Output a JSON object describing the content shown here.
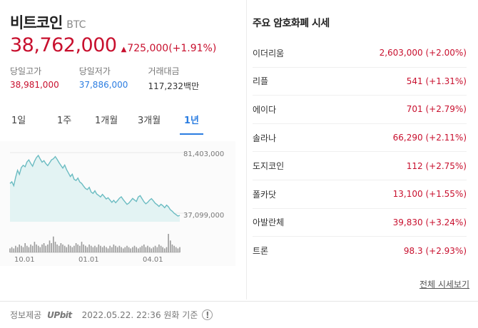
{
  "coin": {
    "name": "비트코인",
    "ticker": "BTC",
    "price": "38,762,000",
    "change_arrow": "▲",
    "change": "725,000(+1.91%)"
  },
  "stats": [
    {
      "label": "당일고가",
      "value": "38,981,000",
      "tone": "up"
    },
    {
      "label": "당일저가",
      "value": "37,886,000",
      "tone": "down"
    },
    {
      "label": "거래대금",
      "value": "117,232백만",
      "tone": "neutral"
    }
  ],
  "tabs": [
    {
      "label": "1일",
      "active": false
    },
    {
      "label": "1주",
      "active": false
    },
    {
      "label": "1개월",
      "active": false
    },
    {
      "label": "3개월",
      "active": false
    },
    {
      "label": "1년",
      "active": true
    }
  ],
  "chart_data": {
    "type": "area",
    "title": "",
    "xlabel": "",
    "ylabel": "",
    "ylim": [
      37099000,
      81403000
    ],
    "y_tick_labels": [
      "81,403,000",
      "37,099,000"
    ],
    "x_tick_labels": [
      "10.01",
      "01.01",
      "04.01"
    ],
    "price_series": [
      55.2,
      56.1,
      54.0,
      58.5,
      62.3,
      60.1,
      63.8,
      65.0,
      64.2,
      66.8,
      67.9,
      66.0,
      64.5,
      67.2,
      69.1,
      70.3,
      68.4,
      66.7,
      67.5,
      65.9,
      64.8,
      66.3,
      67.9,
      68.5,
      69.7,
      68.2,
      66.4,
      64.9,
      63.5,
      65.1,
      62.7,
      60.8,
      58.9,
      60.2,
      57.4,
      56.8,
      58.1,
      56.0,
      55.2,
      53.8,
      52.5,
      51.9,
      53.1,
      50.6,
      49.8,
      51.2,
      49.5,
      48.7,
      47.9,
      49.3,
      48.1,
      46.8,
      47.5,
      46.2,
      45.0,
      46.1,
      44.8,
      45.9,
      47.2,
      48.0,
      46.5,
      45.2,
      43.9,
      44.6,
      45.8,
      47.1,
      46.3,
      45.5,
      47.9,
      48.6,
      47.0,
      45.3,
      44.2,
      45.0,
      46.2,
      47.0,
      45.8,
      44.5,
      43.7,
      42.8,
      44.0,
      43.2,
      42.1,
      43.5,
      42.6,
      41.0,
      40.2,
      39.1,
      38.4,
      37.6,
      38.0
    ],
    "volume_series": [
      3,
      4,
      3,
      5,
      4,
      6,
      5,
      4,
      7,
      5,
      4,
      6,
      5,
      8,
      6,
      5,
      4,
      6,
      7,
      5,
      6,
      9,
      7,
      12,
      8,
      6,
      5,
      7,
      6,
      5,
      4,
      6,
      5,
      4,
      5,
      7,
      6,
      5,
      8,
      6,
      5,
      4,
      6,
      5,
      4,
      5,
      4,
      6,
      5,
      4,
      5,
      4,
      3,
      5,
      4,
      6,
      5,
      4,
      5,
      4,
      3,
      4,
      5,
      4,
      3,
      4,
      5,
      4,
      3,
      4,
      5,
      6,
      4,
      5,
      4,
      3,
      4,
      5,
      4,
      6,
      5,
      4,
      3,
      4,
      14,
      9,
      6,
      5,
      4,
      3,
      4
    ]
  },
  "market": {
    "title": "주요 암호화폐 시세",
    "items": [
      {
        "name": "이더리움",
        "price": "2,603,000 (+2.00%)"
      },
      {
        "name": "리플",
        "price": "541 (+1.31%)"
      },
      {
        "name": "에이다",
        "price": "701 (+2.79%)"
      },
      {
        "name": "솔라나",
        "price": "66,290 (+2.11%)"
      },
      {
        "name": "도지코인",
        "price": "112 (+2.75%)"
      },
      {
        "name": "폴카닷",
        "price": "13,100 (+1.55%)"
      },
      {
        "name": "아발란체",
        "price": "39,830 (+3.24%)"
      },
      {
        "name": "트론",
        "price": "98.3 (+2.93%)"
      }
    ],
    "more_label": "전체 시세보기"
  },
  "footer": {
    "provider_label": "정보제공",
    "provider_logo": "UPbit",
    "timestamp": "2022.05.22. 22:36 원화 기준",
    "info_icon": "!"
  },
  "colors": {
    "up": "#c8102e",
    "down": "#2b7de1",
    "line": "#6bbcc2",
    "area": "#e3f3f3",
    "volume": "#9a9a9a"
  }
}
